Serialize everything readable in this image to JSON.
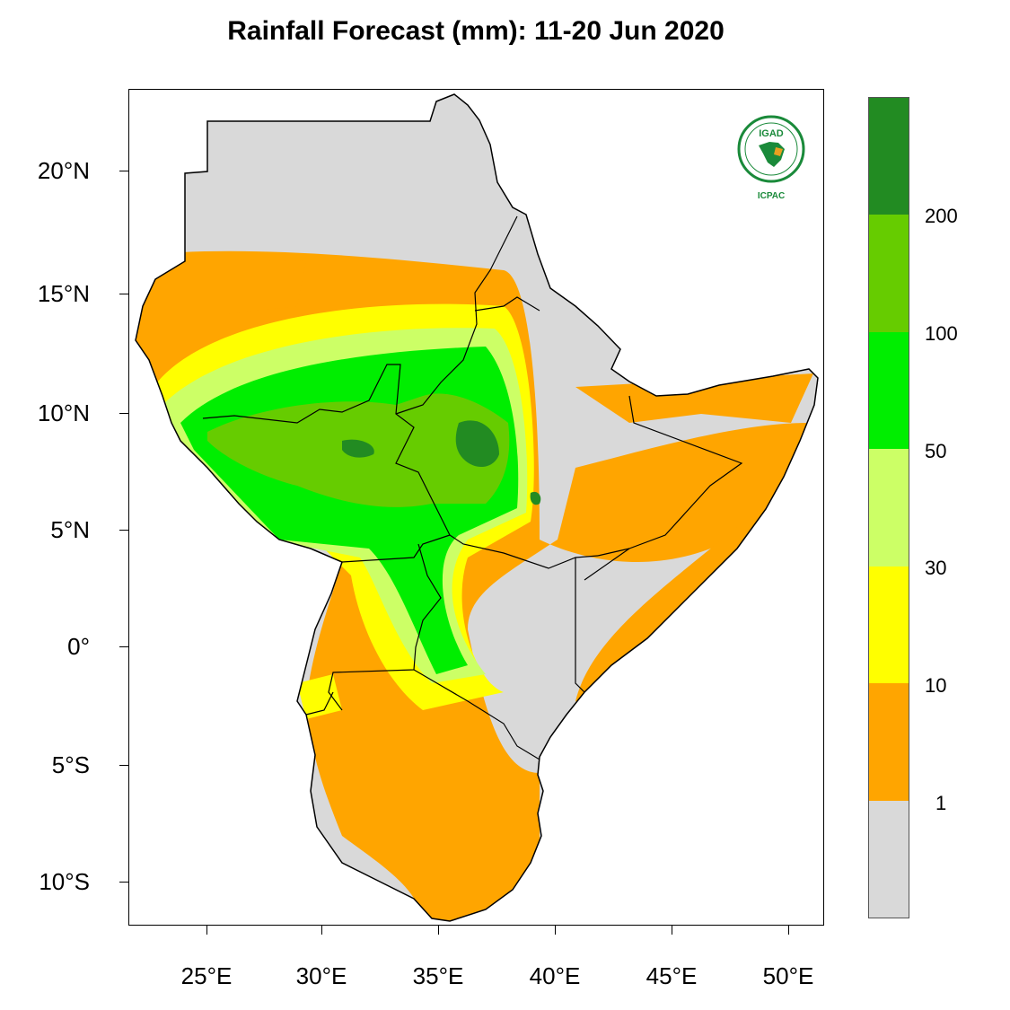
{
  "title": "Rainfall Forecast (mm): 11-20 Jun 2020",
  "logo": {
    "top_text": "IGAD",
    "bottom_text": "ICPAC"
  },
  "map": {
    "y_axis_labels": [
      "20°N",
      "15°N",
      "10°N",
      "5°N",
      "0°",
      "5°S",
      "10°S"
    ],
    "x_axis_labels": [
      "25°E",
      "30°E",
      "35°E",
      "40°E",
      "45°E",
      "50°E"
    ]
  },
  "legend": {
    "colors": [
      "#228b22",
      "#66cc00",
      "#00ee00",
      "#ccff66",
      "#ffff00",
      "#ffa500",
      "#d9d9d9"
    ],
    "labels": [
      "200",
      "100",
      "50",
      "30",
      "10",
      "1"
    ]
  }
}
